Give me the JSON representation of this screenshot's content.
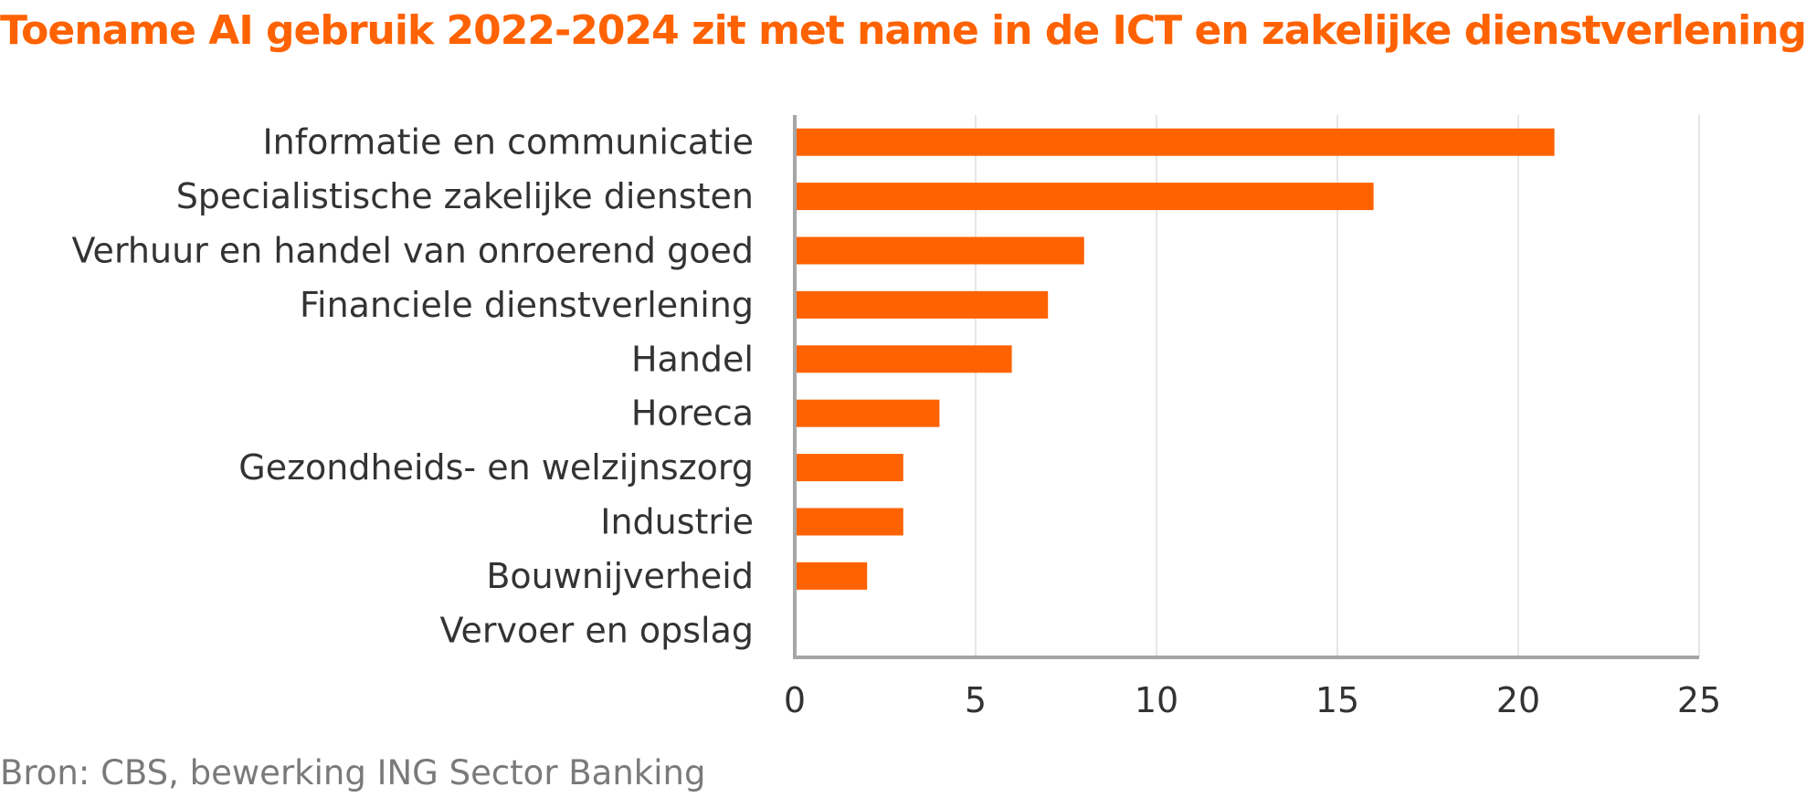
{
  "title": "Toename AI gebruik 2022-2024 zit met name in de ICT en zakelijke dienstverlening",
  "source": "Bron: CBS, bewerking ING Sector Banking",
  "colors": {
    "title": "#FF6200",
    "bar": "#FF6200",
    "text": "#333333",
    "source": "#7a7a7a",
    "axis": "#a6a6a6",
    "grid": "#e6e6e6"
  },
  "chart_data": {
    "type": "bar",
    "orientation": "horizontal",
    "categories": [
      "Informatie en communicatie",
      "Specialistische zakelijke diensten",
      "Verhuur en handel van onroerend goed",
      "Financiele dienstverlening",
      "Handel",
      "Horeca",
      "Gezondheids- en welzijnszorg",
      "Industrie",
      "Bouwnijverheid",
      "Vervoer en opslag"
    ],
    "values": [
      21,
      16,
      8,
      7,
      6,
      4,
      3,
      3,
      2,
      0
    ],
    "xlim": [
      0,
      25
    ],
    "xticks": [
      0,
      5,
      10,
      15,
      20,
      25
    ],
    "xtick_labels": [
      "0",
      "5",
      "10",
      "15",
      "20",
      "25"
    ],
    "grid": "vertical",
    "legend": "none"
  }
}
